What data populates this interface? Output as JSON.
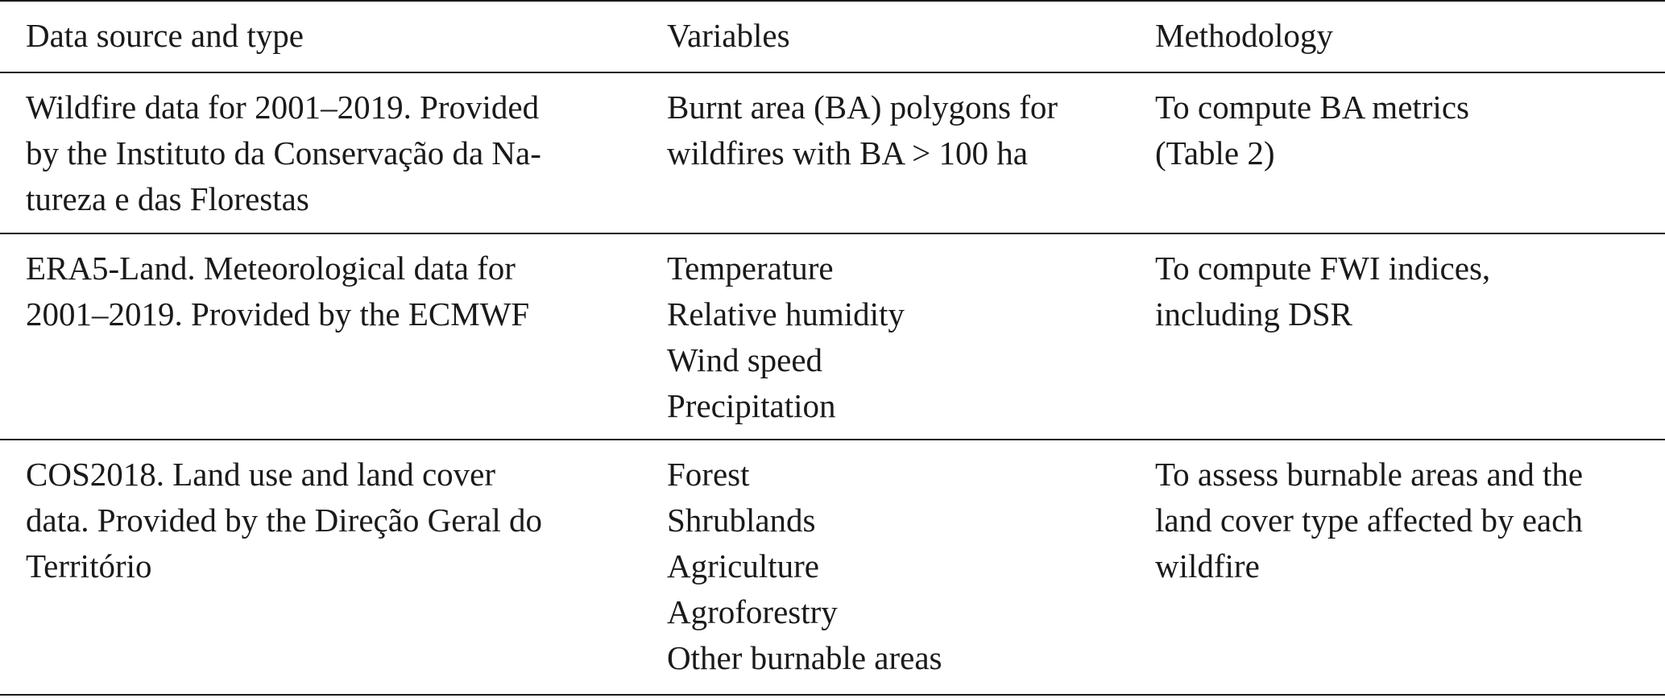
{
  "headers": {
    "source": "Data source and type",
    "variables": "Variables",
    "methodology": "Methodology"
  },
  "rows": [
    {
      "source_lines": [
        "Wildfire data for 2001–2019. Provided",
        "by the Instituto da Conservação da Na-",
        "tureza e das Florestas"
      ],
      "variable_lines": [
        "Burnt area (BA) polygons for",
        "wildfires with BA > 100 ha"
      ],
      "method_lines": [
        "To compute BA metrics",
        "(Table 2)"
      ]
    },
    {
      "source_lines": [
        "ERA5-Land. Meteorological data for",
        "2001–2019. Provided by the ECMWF"
      ],
      "variable_lines": [
        "Temperature",
        "Relative humidity",
        "Wind speed",
        "Precipitation"
      ],
      "method_lines": [
        "To compute FWI indices,",
        "including DSR"
      ]
    },
    {
      "source_lines": [
        "COS2018. Land use and land cover",
        "data. Provided by the Direção Geral do",
        "Território"
      ],
      "variable_lines": [
        "Forest",
        "Shrublands",
        "Agriculture",
        "Agroforestry",
        "Other burnable areas"
      ],
      "method_lines": [
        "To assess burnable areas and the",
        "land cover type affected by each",
        "wildfire"
      ]
    }
  ]
}
